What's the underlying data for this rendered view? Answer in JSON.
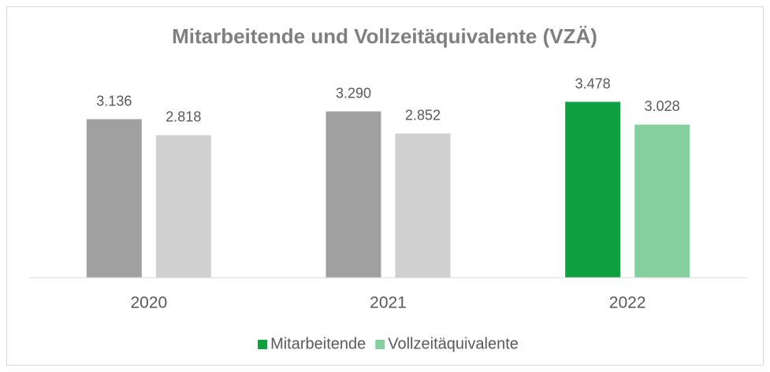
{
  "chart_data": {
    "type": "bar",
    "title": "Mitarbeitende und Vollzeitäquivalente (VZÄ)",
    "categories": [
      "2020",
      "2021",
      "2022"
    ],
    "series": [
      {
        "name": "Mitarbeitende",
        "color": "#0e9f40",
        "colors": [
          "#a0a0a0",
          "#a0a0a0",
          "#0e9f40"
        ],
        "values": [
          3136,
          3290,
          3478
        ],
        "value_labels": [
          "3.136",
          "3.290",
          "3.478"
        ]
      },
      {
        "name": "Vollzeitäquivalente",
        "color": "#86d09f",
        "colors": [
          "#d0d0d0",
          "#d0d0d0",
          "#86d09f"
        ],
        "values": [
          2818,
          2852,
          3028
        ],
        "value_labels": [
          "2.818",
          "2.852",
          "3.028"
        ]
      }
    ],
    "ylim": [
      0,
      4000
    ],
    "legend": "bottom"
  }
}
